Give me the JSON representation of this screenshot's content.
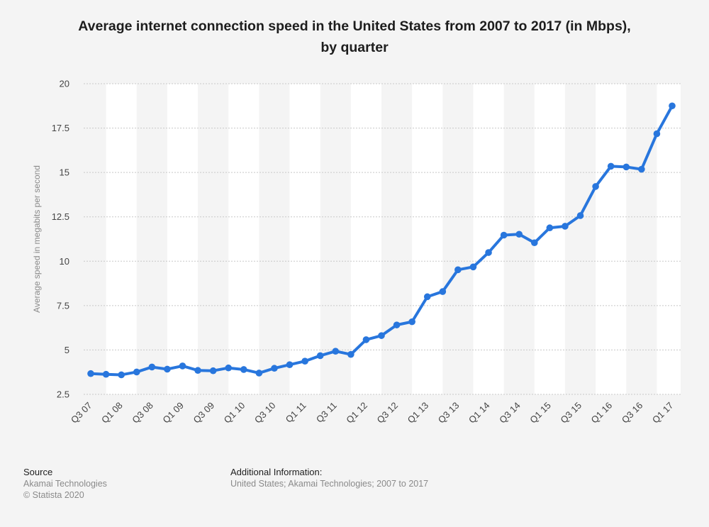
{
  "title_line1": "Average internet connection speed in the United States from 2007 to 2017 (in Mbps),",
  "title_line2": "by quarter",
  "chart_data": {
    "type": "line",
    "ylabel": "Average speed in megabits per second",
    "ylim": [
      2.5,
      20
    ],
    "yticks": [
      2.5,
      5,
      7.5,
      10,
      12.5,
      15,
      17.5,
      20
    ],
    "grid": true,
    "categories": [
      "Q3 07",
      "Q4 07",
      "Q1 08",
      "Q2 08",
      "Q3 08",
      "Q4 08",
      "Q1 09",
      "Q2 09",
      "Q3 09",
      "Q4 09",
      "Q1 10",
      "Q2 10",
      "Q3 10",
      "Q4 10",
      "Q1 11",
      "Q2 11",
      "Q3 11",
      "Q4 11",
      "Q1 12",
      "Q2 12",
      "Q3 12",
      "Q4 12",
      "Q1 13",
      "Q2 13",
      "Q3 13",
      "Q4 13",
      "Q1 14",
      "Q2 14",
      "Q3 14",
      "Q4 14",
      "Q1 15",
      "Q2 15",
      "Q3 15",
      "Q4 15",
      "Q1 16",
      "Q2 16",
      "Q3 16",
      "Q4 16",
      "Q1 17"
    ],
    "xtick_labels": [
      "Q3 07",
      "",
      "Q1 08",
      "",
      "Q3 08",
      "",
      "Q1 09",
      "",
      "Q3 09",
      "",
      "Q1 10",
      "",
      "Q3 10",
      "",
      "Q1 11",
      "",
      "Q3 11",
      "",
      "Q1 12",
      "",
      "Q3 12",
      "",
      "Q1 13",
      "",
      "Q3 13",
      "",
      "Q1 14",
      "",
      "Q3 14",
      "",
      "Q1 15",
      "",
      "Q3 15",
      "",
      "Q1 16",
      "",
      "Q3 16",
      "",
      "Q1 17"
    ],
    "values": [
      3.67,
      3.63,
      3.6,
      3.76,
      4.04,
      3.92,
      4.1,
      3.85,
      3.83,
      3.99,
      3.9,
      3.7,
      3.97,
      4.17,
      4.37,
      4.68,
      4.93,
      4.75,
      5.58,
      5.81,
      6.41,
      6.59,
      8.0,
      8.29,
      9.52,
      9.68,
      10.49,
      11.47,
      11.52,
      11.04,
      11.88,
      11.97,
      12.57,
      14.21,
      15.35,
      15.31,
      15.18,
      17.18,
      18.75
    ],
    "color": "#2876dd",
    "band_color": "#ffffff",
    "grid_color": "#c8c8c8"
  },
  "footer": {
    "source_head": "Source",
    "source_lines": [
      "Akamai Technologies",
      "© Statista 2020"
    ],
    "info_head": "Additional Information:",
    "info_text": "United States; Akamai Technologies; 2007 to 2017"
  }
}
